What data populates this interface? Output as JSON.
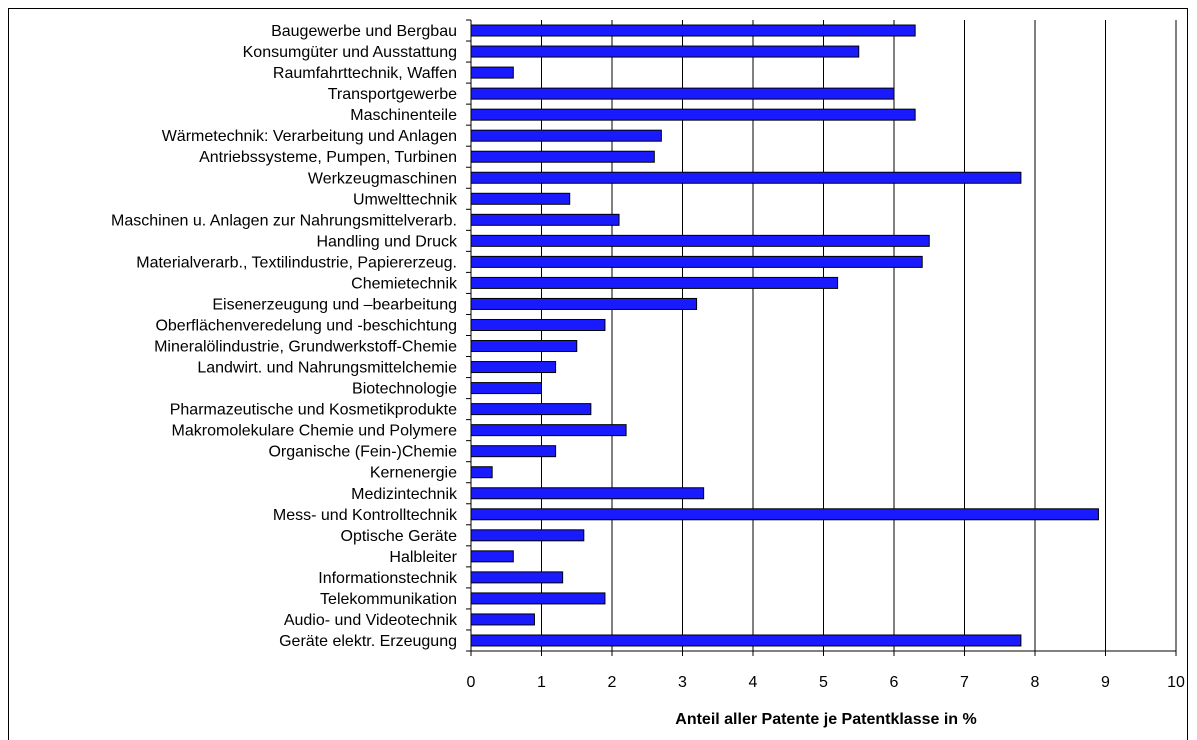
{
  "chart_data": {
    "type": "bar",
    "orientation": "horizontal",
    "categories": [
      "Baugewerbe und Bergbau",
      "Konsumgüter und Ausstattung",
      "Raumfahrttechnik, Waffen",
      "Transportgewerbe",
      "Maschinenteile",
      "Wärmetechnik: Verarbeitung und Anlagen",
      "Antriebssysteme, Pumpen, Turbinen",
      "Werkzeugmaschinen",
      "Umwelttechnik",
      "Maschinen u. Anlagen zur Nahrungsmittelverarb.",
      "Handling und Druck",
      "Materialverarb., Textilindustrie, Papiererzeug.",
      "Chemietechnik",
      "Eisenerzeugung und –bearbeitung",
      "Oberflächenveredelung und -beschichtung",
      "Mineralölindustrie, Grundwerkstoff-Chemie",
      "Landwirt. und Nahrungsmittelchemie",
      "Biotechnologie",
      "Pharmazeutische und Kosmetikprodukte",
      "Makromolekulare Chemie und Polymere",
      "Organische (Fein-)Chemie",
      "Kernenergie",
      "Medizintechnik",
      "Mess- und Kontrolltechnik",
      "Optische Geräte",
      "Halbleiter",
      "Informationstechnik",
      "Telekommunikation",
      "Audio- und Videotechnik",
      "Geräte elektr. Erzeugung"
    ],
    "values": [
      6.3,
      5.5,
      0.6,
      6.0,
      6.3,
      2.7,
      2.6,
      7.8,
      1.4,
      2.1,
      6.5,
      6.4,
      5.2,
      3.2,
      1.9,
      1.5,
      1.2,
      1.0,
      1.7,
      2.2,
      1.2,
      0.3,
      3.3,
      8.9,
      1.6,
      0.6,
      1.3,
      1.9,
      0.9,
      7.8
    ],
    "title": "",
    "xlabel": "Anteil aller Patente je Patentklasse in %",
    "ylabel": "",
    "xlim": [
      0,
      10
    ],
    "xticks": [
      "0",
      "1",
      "2",
      "3",
      "4",
      "5",
      "6",
      "7",
      "8",
      "9",
      "10"
    ],
    "grid": "vertical lines",
    "legend": "none",
    "bar_color": "#1a1aff",
    "bar_outline": "#000000",
    "gridline_color": "#000000"
  }
}
